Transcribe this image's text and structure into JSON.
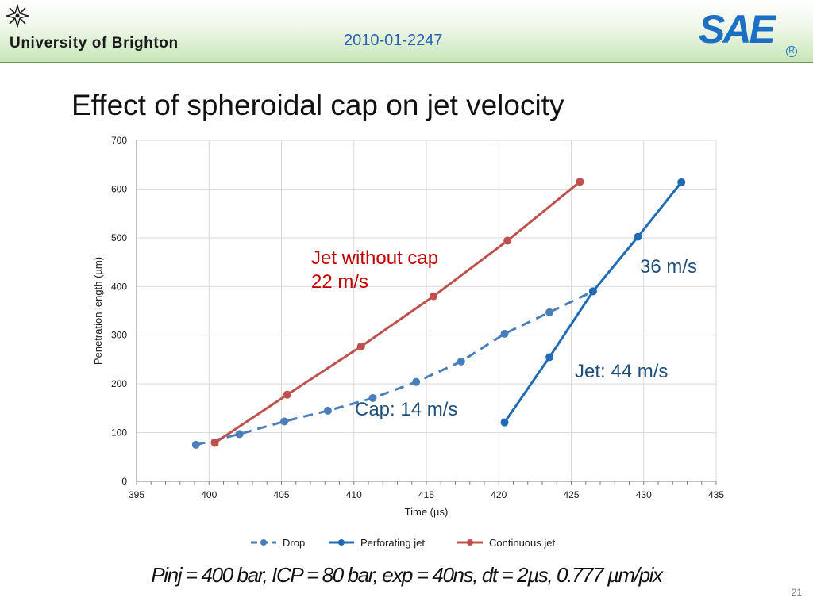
{
  "header": {
    "university": "University of Brighton",
    "paper_id": "2010-01-2247",
    "sae_logo_text": "SAE",
    "sae_reg_mark": "R"
  },
  "slide": {
    "title": "Effect of spheroidal cap on jet velocity",
    "footer": "Pinj = 400 bar, ICP = 80 bar, exp = 40ns, dt = 2µs, 0.777 µm/pix",
    "page_number": "21"
  },
  "chart_data": {
    "type": "line",
    "xlabel": "Time (µs)",
    "ylabel": "Penetration length (µm)",
    "xlim": [
      395,
      435
    ],
    "ylim": [
      0,
      700
    ],
    "xticks": [
      395,
      400,
      405,
      410,
      415,
      420,
      425,
      430,
      435
    ],
    "yticks": [
      0,
      100,
      200,
      300,
      400,
      500,
      600,
      700
    ],
    "grid": true,
    "legend_position": "bottom",
    "series": [
      {
        "name": "Drop",
        "color": "#4a7ebb",
        "dashed": true,
        "x": [
          399.1,
          402.1,
          405.2,
          408.2,
          411.3,
          414.3,
          417.4,
          420.4,
          423.5,
          426.5
        ],
        "y": [
          75,
          97,
          123,
          145,
          171,
          204,
          246,
          303,
          347,
          390
        ]
      },
      {
        "name": "Perforating jet",
        "color": "#1f6bb5",
        "dashed": false,
        "x": [
          420.4,
          423.5,
          426.5,
          429.6,
          432.6
        ],
        "y": [
          121,
          255,
          390,
          502,
          614
        ]
      },
      {
        "name": "Continuous jet",
        "color": "#c0504d",
        "dashed": false,
        "x": [
          400.4,
          405.4,
          410.5,
          415.5,
          420.6,
          425.6
        ],
        "y": [
          79,
          178,
          277,
          380,
          494,
          615
        ]
      }
    ],
    "annotations": [
      {
        "text": "Jet without cap",
        "color": "#c00000"
      },
      {
        "text": "22 m/s",
        "color": "#c00000"
      },
      {
        "text": "36 m/s",
        "color": "#1f4e79"
      },
      {
        "text": "Jet: 44 m/s",
        "color": "#1f4e79"
      },
      {
        "text": "Cap: 14 m/s",
        "color": "#1f4e79"
      }
    ]
  }
}
